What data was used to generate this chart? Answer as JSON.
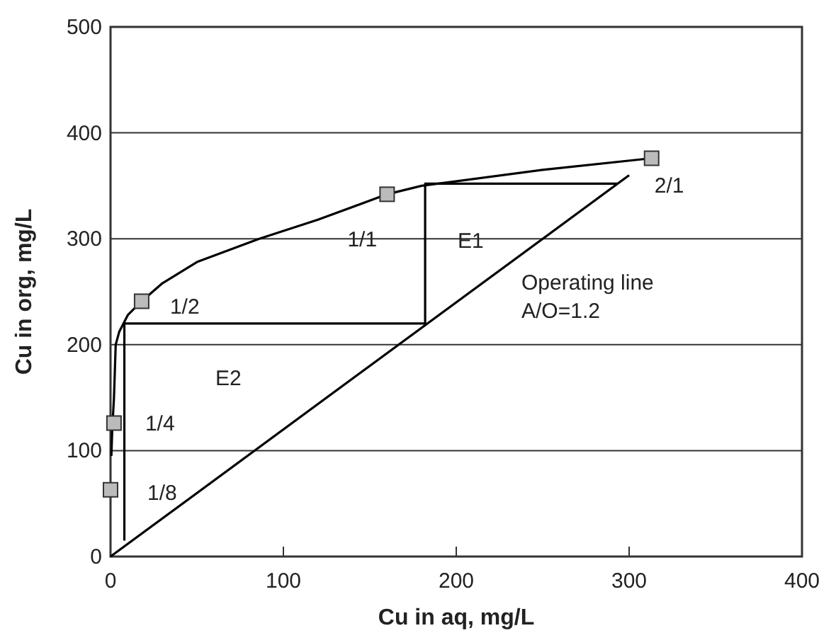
{
  "chart_data": {
    "type": "line",
    "xlabel": "Cu in aq, mg/L",
    "ylabel": "Cu in org, mg/L",
    "xlim": [
      0,
      400
    ],
    "ylim": [
      0,
      500
    ],
    "xticks": [
      0,
      100,
      200,
      300,
      400
    ],
    "yticks": [
      0,
      100,
      200,
      300,
      400,
      500
    ],
    "grid": "y",
    "series": [
      {
        "color": "#000000",
        "marker": "none",
        "x": [
          0.5,
          1,
          2,
          3,
          5,
          10,
          18,
          30,
          50,
          86,
          120,
          160,
          180,
          250,
          313
        ],
        "values": [
          95,
          120,
          150,
          200,
          212,
          228,
          241,
          258,
          278,
          300,
          318,
          342,
          350,
          365,
          376
        ]
      },
      {
        "type": "scatter",
        "color": "#bbbbbb",
        "marker": "square",
        "x": [
          0,
          2,
          18,
          160,
          313
        ],
        "values": [
          63,
          126,
          241,
          342,
          376
        ]
      },
      {
        "color": "#000000",
        "marker": "none",
        "x": [
          0,
          300
        ],
        "values": [
          0,
          360
        ]
      },
      {
        "color": "#000000",
        "marker": "none",
        "x": [
          293,
          182,
          182,
          8,
          8
        ],
        "values": [
          352,
          352,
          220,
          220,
          15
        ]
      }
    ],
    "annotations": [
      {
        "text": "1/8",
        "x": 0,
        "y": 63
      },
      {
        "text": "1/4",
        "x": 2,
        "y": 126
      },
      {
        "text": "1/2",
        "x": 18,
        "y": 241
      },
      {
        "text": "1/1",
        "x": 160,
        "y": 342
      },
      {
        "text": "2/1",
        "x": 313,
        "y": 376
      },
      {
        "text": "E1",
        "x": 182,
        "y": 298
      },
      "E2",
      {
        "text": "Operating line",
        "x": 250,
        "y": 300
      },
      {
        "text": "A/O=1.2",
        "x": 250,
        "y": 300
      }
    ]
  }
}
